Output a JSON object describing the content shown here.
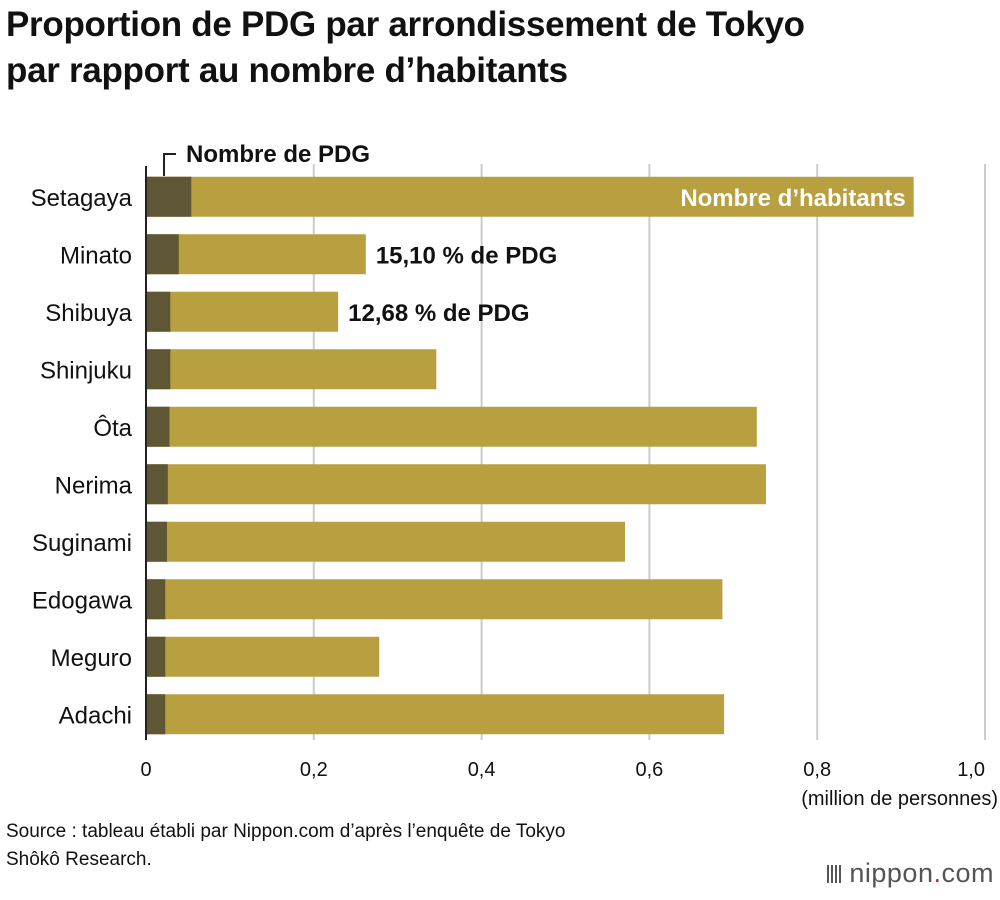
{
  "title": {
    "line1": "Proportion de PDG par arrondissement de Tokyo",
    "line2": "par rapport au nombre d’habitants"
  },
  "chart_data": {
    "type": "bar",
    "orientation": "horizontal",
    "stacked": "overlay",
    "categories": [
      "Setagaya",
      "Minato",
      "Shibuya",
      "Shinjuku",
      "Ôta",
      "Nerima",
      "Suginami",
      "Edogawa",
      "Meguro",
      "Adachi"
    ],
    "series": [
      {
        "name": "Nombre d’habitants",
        "values": [
          0.915,
          0.262,
          0.229,
          0.346,
          0.728,
          0.739,
          0.571,
          0.687,
          0.278,
          0.689
        ]
      },
      {
        "name": "Nombre de PDG",
        "values": [
          0.054,
          0.039,
          0.029,
          0.029,
          0.028,
          0.026,
          0.025,
          0.023,
          0.023,
          0.023
        ]
      }
    ],
    "annotations": [
      {
        "category": "Minato",
        "text": "15,10 % de PDG"
      },
      {
        "category": "Shibuya",
        "text": "12,68 % de PDG"
      }
    ],
    "xlim": [
      0,
      1.0
    ],
    "xticks": [
      "0",
      "0,2",
      "0,4",
      "0,6",
      "0,8",
      "1,0"
    ],
    "xlabel": "(million de personnes)",
    "grid": true,
    "colors": {
      "habitants": "#b8a040",
      "pdg": "#5e5634",
      "grid": "#cccccc",
      "axis": "#222222"
    }
  },
  "source": {
    "line1": "Source : tableau établi par Nippon.com d’après l’enquête de Tokyo",
    "line2": "Shôkô Research."
  },
  "logo": {
    "main": "nippon",
    "dot": ".",
    "tld": "com"
  }
}
